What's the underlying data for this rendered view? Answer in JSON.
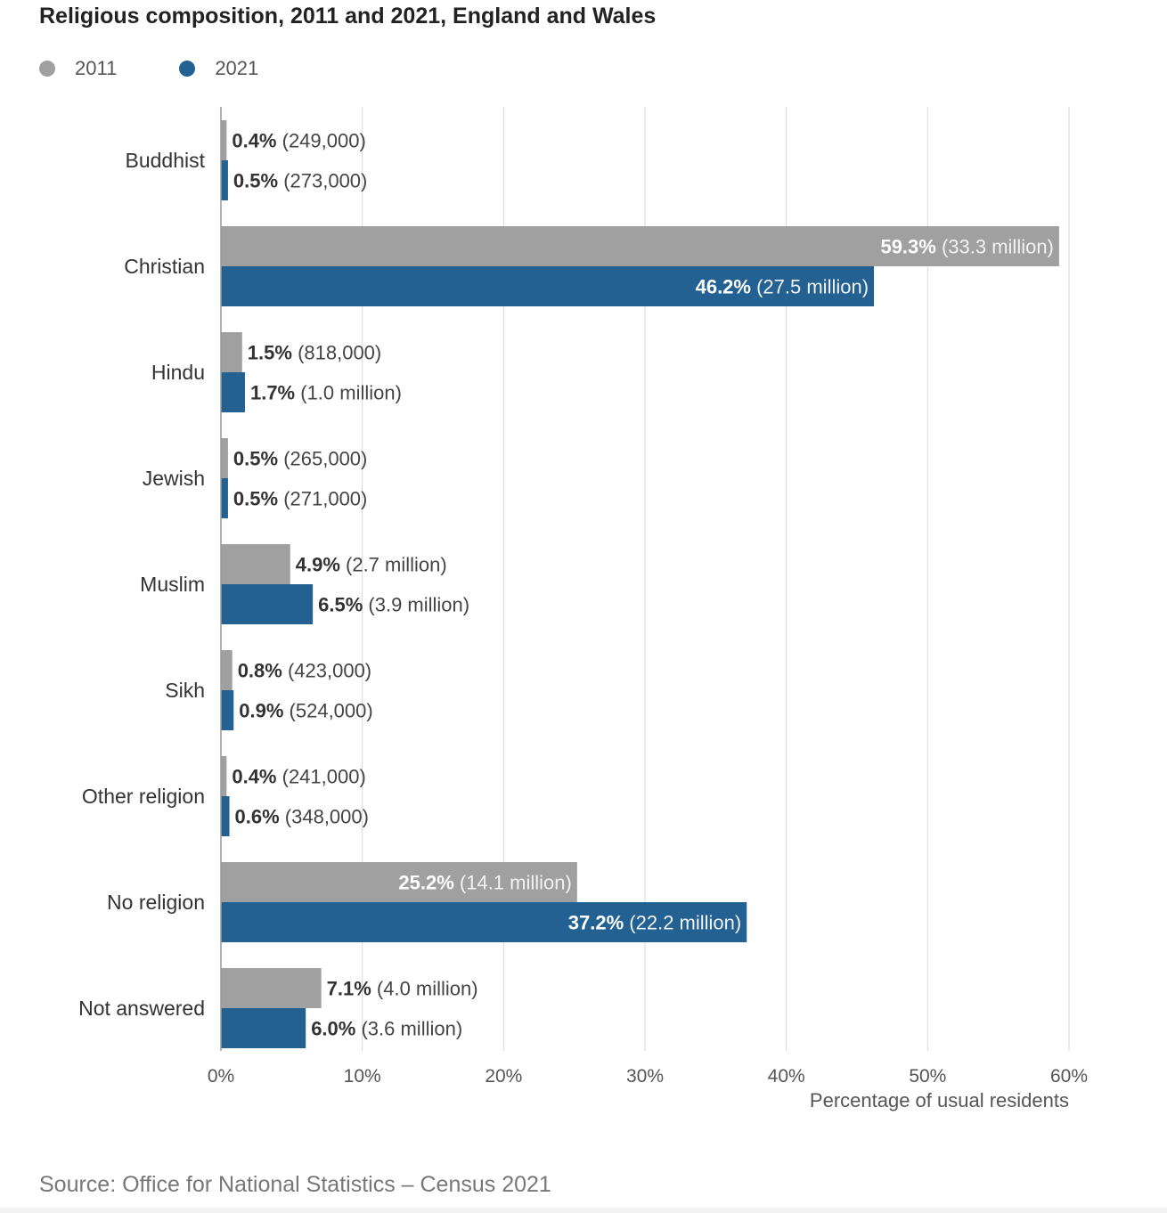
{
  "title": "Religious composition, 2011 and 2021, England and Wales",
  "source": "Source: Office for National Statistics – Census 2021",
  "colors": {
    "s2011": "#a0a0a0",
    "s2021": "#236192",
    "grid": "#d9d9d9",
    "axis": "#999999"
  },
  "chart_data": {
    "type": "bar",
    "orientation": "horizontal",
    "title": "Religious composition, 2011 and 2021, England and Wales",
    "xlabel": "Percentage of usual residents",
    "ylabel": "",
    "xlim": [
      0,
      60
    ],
    "xticks": [
      0,
      10,
      20,
      30,
      40,
      50,
      60
    ],
    "xtick_labels": [
      "0%",
      "10%",
      "20%",
      "30%",
      "40%",
      "50%",
      "60%"
    ],
    "grid": true,
    "legend": "top-left",
    "categories": [
      "Buddhist",
      "Christian",
      "Hindu",
      "Jewish",
      "Muslim",
      "Sikh",
      "Other religion",
      "No religion",
      "Not answered"
    ],
    "series": [
      {
        "name": "2011",
        "color": "#a0a0a0",
        "values": [
          0.4,
          59.3,
          1.5,
          0.5,
          4.9,
          0.8,
          0.4,
          25.2,
          7.1
        ],
        "labels_pct": [
          "0.4%",
          "59.3%",
          "1.5%",
          "0.5%",
          "4.9%",
          "0.8%",
          "0.4%",
          "25.2%",
          "7.1%"
        ],
        "labels_count": [
          "(249,000)",
          "(33.3 million)",
          "(818,000)",
          "(265,000)",
          "(2.7 million)",
          "(423,000)",
          "(241,000)",
          "(14.1 million)",
          "(4.0 million)"
        ]
      },
      {
        "name": "2021",
        "color": "#236192",
        "values": [
          0.5,
          46.2,
          1.7,
          0.5,
          6.5,
          0.9,
          0.6,
          37.2,
          6.0
        ],
        "labels_pct": [
          "0.5%",
          "46.2%",
          "1.7%",
          "0.5%",
          "6.5%",
          "0.9%",
          "0.6%",
          "37.2%",
          "6.0%"
        ],
        "labels_count": [
          "(273,000)",
          "(27.5 million)",
          "(1.0 million)",
          "(271,000)",
          "(3.9 million)",
          "(524,000)",
          "(348,000)",
          "(22.2 million)",
          "(3.6 million)"
        ]
      }
    ]
  }
}
